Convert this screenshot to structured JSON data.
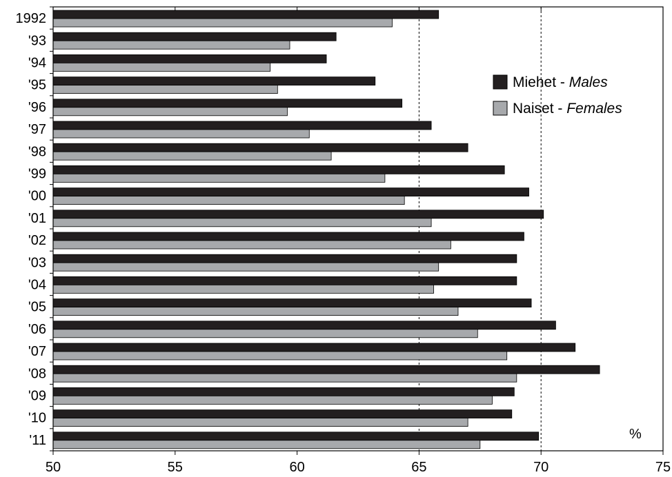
{
  "chart_data": {
    "type": "bar",
    "orientation": "horizontal",
    "categories": [
      "1992",
      "'93",
      "'94",
      "'95",
      "'96",
      "'97",
      "'98",
      "'99",
      "'00",
      "'01",
      "'02",
      "'03",
      "'04",
      "'05",
      "'06",
      "'07",
      "'08",
      "'09",
      "'10",
      "'11"
    ],
    "series": [
      {
        "name_main": "Miehet - ",
        "name_italic": "Males",
        "color": "#231f20",
        "values": [
          65.8,
          61.6,
          61.2,
          63.2,
          64.3,
          65.5,
          67.0,
          68.5,
          69.5,
          70.1,
          69.3,
          69.0,
          69.0,
          69.6,
          70.6,
          71.4,
          72.4,
          68.9,
          68.8,
          69.9
        ]
      },
      {
        "name_main": "Naiset - ",
        "name_italic": "Females",
        "color": "#a7a9ac",
        "values": [
          63.9,
          59.7,
          58.9,
          59.2,
          59.6,
          60.5,
          61.4,
          63.6,
          64.4,
          65.5,
          66.3,
          65.8,
          65.6,
          66.6,
          67.4,
          68.6,
          69.0,
          68.0,
          67.0,
          67.5
        ]
      }
    ],
    "xlim": [
      50,
      75
    ],
    "xticks": [
      "50",
      "55",
      "60",
      "65",
      "70",
      "75"
    ],
    "xtick_values": [
      50,
      55,
      60,
      65,
      70,
      75
    ],
    "gridlines": [
      65,
      70
    ],
    "unit_label": "%",
    "legend_placement": "top-right",
    "grid": true
  }
}
